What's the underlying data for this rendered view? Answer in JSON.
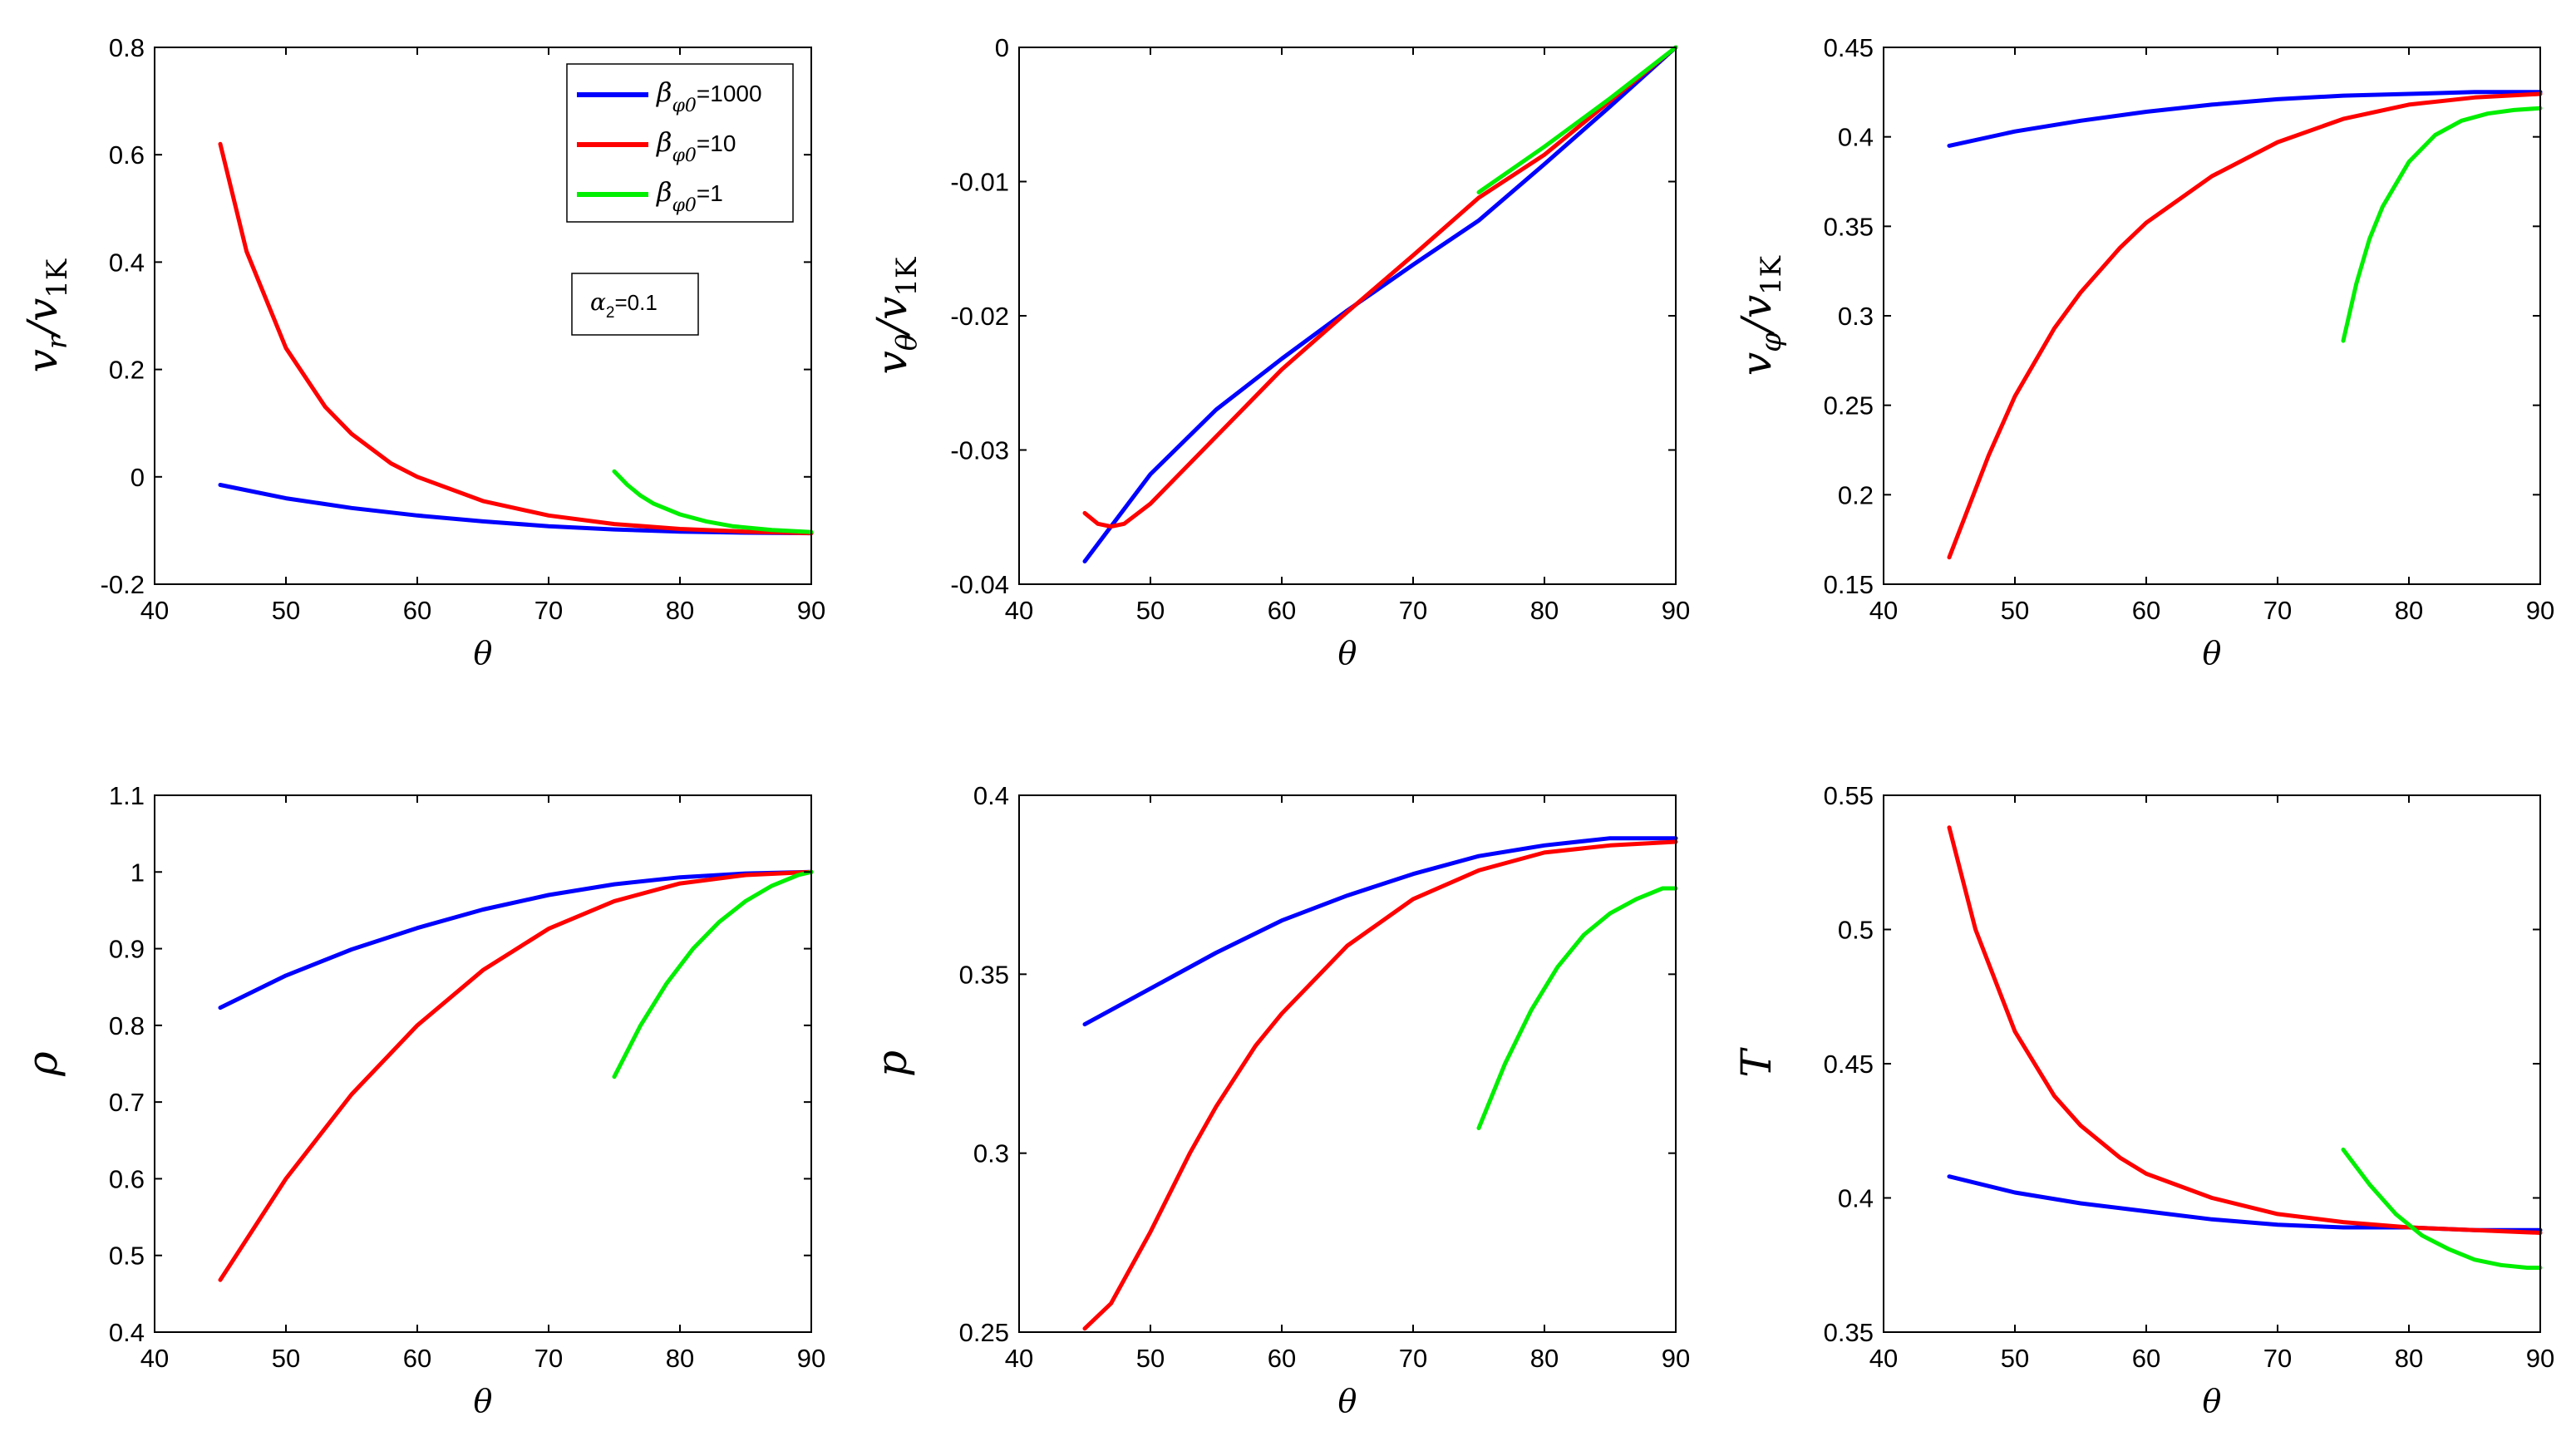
{
  "chart_data": [
    {
      "type": "line",
      "ylabel": "v_r / v_1K",
      "xlabel": "θ",
      "xlim": [
        40,
        90
      ],
      "ylim": [
        -0.2,
        0.8
      ],
      "xticks": [
        "40",
        "50",
        "60",
        "70",
        "80",
        "90"
      ],
      "yticks": [
        "-0.2",
        "0",
        "0.2",
        "0.4",
        "0.6",
        "0.8"
      ],
      "legend": {
        "position": "top-right",
        "entries": [
          {
            "base": "β",
            "sub": "φ0",
            "value": "=1000",
            "color": "#0000ff"
          },
          {
            "base": "β",
            "sub": "φ0",
            "value": "=10",
            "color": "#ff0000"
          },
          {
            "base": "β",
            "sub": "φ0",
            "value": "=1",
            "color": "#00ee00"
          }
        ]
      },
      "annotation": {
        "base": "α",
        "sub": "2",
        "value": "=0.1"
      },
      "series": [
        {
          "name": "β_φ0=1000",
          "color": "#0000ff",
          "x": [
            45,
            50,
            55,
            60,
            65,
            70,
            75,
            80,
            85,
            90
          ],
          "y": [
            -0.015,
            -0.04,
            -0.058,
            -0.072,
            -0.083,
            -0.092,
            -0.098,
            -0.102,
            -0.104,
            -0.105
          ]
        },
        {
          "name": "β_φ0=10",
          "color": "#ff0000",
          "x": [
            45,
            47,
            50,
            53,
            55,
            58,
            60,
            65,
            70,
            75,
            80,
            85,
            90
          ],
          "y": [
            0.62,
            0.42,
            0.24,
            0.13,
            0.08,
            0.025,
            0.0,
            -0.045,
            -0.072,
            -0.088,
            -0.097,
            -0.102,
            -0.105
          ]
        },
        {
          "name": "β_φ0=1",
          "color": "#00ee00",
          "x": [
            75,
            76,
            77,
            78,
            80,
            82,
            84,
            87,
            90
          ],
          "y": [
            0.01,
            -0.015,
            -0.035,
            -0.05,
            -0.07,
            -0.083,
            -0.092,
            -0.099,
            -0.103
          ]
        }
      ]
    },
    {
      "type": "line",
      "ylabel": "v_θ / v_1K",
      "xlabel": "θ",
      "xlim": [
        40,
        90
      ],
      "ylim": [
        -0.04,
        0
      ],
      "xticks": [
        "40",
        "50",
        "60",
        "70",
        "80",
        "90"
      ],
      "yticks": [
        "-0.04",
        "-0.03",
        "-0.02",
        "-0.01",
        "0"
      ],
      "series": [
        {
          "name": "β_φ0=1000",
          "color": "#0000ff",
          "x": [
            45,
            50,
            55,
            60,
            65,
            70,
            75,
            80,
            85,
            90
          ],
          "y": [
            -0.0383,
            -0.0318,
            -0.027,
            -0.0232,
            -0.0196,
            -0.0162,
            -0.0129,
            -0.0087,
            -0.0044,
            0.0
          ]
        },
        {
          "name": "β_φ0=10",
          "color": "#ff0000",
          "x": [
            45,
            46,
            47,
            48,
            50,
            55,
            60,
            65,
            70,
            75,
            80,
            85,
            90
          ],
          "y": [
            -0.0347,
            -0.0355,
            -0.0357,
            -0.0355,
            -0.034,
            -0.029,
            -0.024,
            -0.0197,
            -0.0155,
            -0.0112,
            -0.008,
            -0.004,
            0.0
          ]
        },
        {
          "name": "β_φ0=1",
          "color": "#00ee00",
          "x": [
            75,
            80,
            85,
            90
          ],
          "y": [
            -0.0108,
            -0.0074,
            -0.0038,
            0.0
          ]
        }
      ]
    },
    {
      "type": "line",
      "ylabel": "v_φ / v_1K",
      "xlabel": "θ",
      "xlim": [
        40,
        90
      ],
      "ylim": [
        0.15,
        0.45
      ],
      "xticks": [
        "40",
        "50",
        "60",
        "70",
        "80",
        "90"
      ],
      "yticks": [
        "0.15",
        "0.2",
        "0.25",
        "0.3",
        "0.35",
        "0.4",
        "0.45"
      ],
      "series": [
        {
          "name": "β_φ0=1000",
          "color": "#0000ff",
          "x": [
            45,
            50,
            55,
            60,
            65,
            70,
            75,
            80,
            85,
            90
          ],
          "y": [
            0.395,
            0.403,
            0.409,
            0.414,
            0.418,
            0.421,
            0.423,
            0.424,
            0.425,
            0.425
          ]
        },
        {
          "name": "β_φ0=10",
          "color": "#ff0000",
          "x": [
            45,
            48,
            50,
            53,
            55,
            58,
            60,
            65,
            70,
            75,
            80,
            85,
            90
          ],
          "y": [
            0.165,
            0.222,
            0.255,
            0.293,
            0.313,
            0.338,
            0.352,
            0.378,
            0.397,
            0.41,
            0.418,
            0.422,
            0.424
          ]
        },
        {
          "name": "β_φ0=1",
          "color": "#00ee00",
          "x": [
            75,
            76,
            77,
            78,
            80,
            82,
            84,
            86,
            88,
            90
          ],
          "y": [
            0.286,
            0.318,
            0.343,
            0.361,
            0.386,
            0.401,
            0.409,
            0.413,
            0.415,
            0.416
          ]
        }
      ]
    },
    {
      "type": "line",
      "ylabel": "ρ",
      "xlabel": "θ",
      "xlim": [
        40,
        90
      ],
      "ylim": [
        0.4,
        1.1
      ],
      "xticks": [
        "40",
        "50",
        "60",
        "70",
        "80",
        "90"
      ],
      "yticks": [
        "0.4",
        "0.5",
        "0.6",
        "0.7",
        "0.8",
        "0.9",
        "1",
        "1.1"
      ],
      "series": [
        {
          "name": "β_φ0=1000",
          "color": "#0000ff",
          "x": [
            45,
            50,
            55,
            60,
            65,
            70,
            75,
            80,
            85,
            90
          ],
          "y": [
            0.823,
            0.865,
            0.899,
            0.927,
            0.951,
            0.97,
            0.984,
            0.993,
            0.998,
            1.0
          ]
        },
        {
          "name": "β_φ0=10",
          "color": "#ff0000",
          "x": [
            45,
            50,
            55,
            60,
            65,
            70,
            75,
            80,
            85,
            90
          ],
          "y": [
            0.468,
            0.6,
            0.71,
            0.8,
            0.872,
            0.926,
            0.962,
            0.985,
            0.996,
            1.0
          ]
        },
        {
          "name": "β_φ0=1",
          "color": "#00ee00",
          "x": [
            75,
            77,
            79,
            81,
            83,
            85,
            87,
            89,
            90
          ],
          "y": [
            0.733,
            0.8,
            0.855,
            0.9,
            0.935,
            0.962,
            0.982,
            0.996,
            1.0
          ]
        }
      ]
    },
    {
      "type": "line",
      "ylabel": "p",
      "xlabel": "θ",
      "xlim": [
        40,
        90
      ],
      "ylim": [
        0.25,
        0.4
      ],
      "xticks": [
        "40",
        "50",
        "60",
        "70",
        "80",
        "90"
      ],
      "yticks": [
        "0.25",
        "0.3",
        "0.35",
        "0.4"
      ],
      "series": [
        {
          "name": "β_φ0=1000",
          "color": "#0000ff",
          "x": [
            45,
            50,
            55,
            60,
            65,
            70,
            75,
            80,
            85,
            90
          ],
          "y": [
            0.336,
            0.346,
            0.356,
            0.365,
            0.372,
            0.378,
            0.383,
            0.386,
            0.388,
            0.388
          ]
        },
        {
          "name": "β_φ0=10",
          "color": "#ff0000",
          "x": [
            45,
            47,
            50,
            53,
            55,
            58,
            60,
            65,
            70,
            75,
            80,
            85,
            90
          ],
          "y": [
            0.251,
            0.258,
            0.278,
            0.3,
            0.313,
            0.33,
            0.339,
            0.358,
            0.371,
            0.379,
            0.384,
            0.386,
            0.387
          ]
        },
        {
          "name": "β_φ0=1",
          "color": "#00ee00",
          "x": [
            75,
            77,
            79,
            81,
            83,
            85,
            87,
            89,
            90
          ],
          "y": [
            0.307,
            0.325,
            0.34,
            0.352,
            0.361,
            0.367,
            0.371,
            0.374,
            0.374
          ]
        }
      ]
    },
    {
      "type": "line",
      "ylabel": "T",
      "xlabel": "θ",
      "xlim": [
        40,
        90
      ],
      "ylim": [
        0.35,
        0.55
      ],
      "xticks": [
        "40",
        "50",
        "60",
        "70",
        "80",
        "90"
      ],
      "yticks": [
        "0.35",
        "0.4",
        "0.45",
        "0.5",
        "0.55"
      ],
      "series": [
        {
          "name": "β_φ0=1000",
          "color": "#0000ff",
          "x": [
            45,
            50,
            55,
            60,
            65,
            70,
            75,
            80,
            85,
            90
          ],
          "y": [
            0.408,
            0.402,
            0.398,
            0.395,
            0.392,
            0.39,
            0.389,
            0.389,
            0.388,
            0.388
          ]
        },
        {
          "name": "β_φ0=10",
          "color": "#ff0000",
          "x": [
            45,
            47,
            50,
            53,
            55,
            58,
            60,
            65,
            70,
            75,
            80,
            85,
            90
          ],
          "y": [
            0.538,
            0.5,
            0.462,
            0.438,
            0.427,
            0.415,
            0.409,
            0.4,
            0.394,
            0.391,
            0.389,
            0.388,
            0.387
          ]
        },
        {
          "name": "β_φ0=1",
          "color": "#00ee00",
          "x": [
            75,
            77,
            79,
            81,
            83,
            85,
            87,
            89,
            90
          ],
          "y": [
            0.418,
            0.405,
            0.394,
            0.386,
            0.381,
            0.377,
            0.375,
            0.374,
            0.374
          ]
        }
      ]
    }
  ]
}
